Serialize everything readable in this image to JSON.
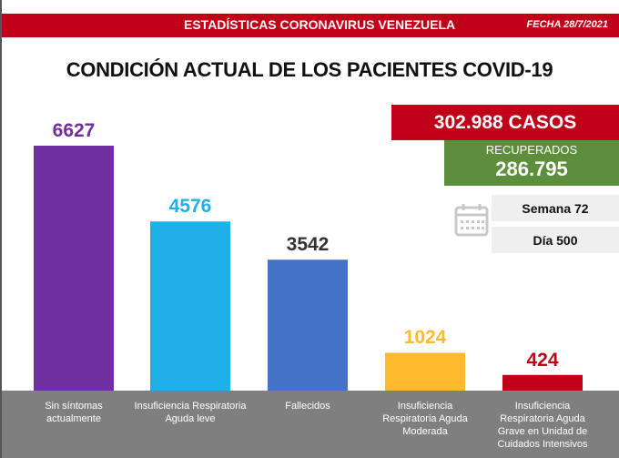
{
  "header": {
    "title": "ESTADÍSTICAS CORONAVIRUS VENEZUELA",
    "date": "FECHA 28/7/2021"
  },
  "summary": {
    "casos": "302.988 CASOS",
    "recuperados_label": "RECUPERADOS",
    "recuperados_value": "286.795",
    "semana": "Semana 72",
    "dia": "Día 500",
    "calendar_icon": "calendar-icon"
  },
  "colors": {
    "header_red": "#c00018",
    "recovered_green": "#5c8e3b",
    "band_gray": "#7f7f7f"
  },
  "chart_data": {
    "type": "bar",
    "title": "CONDICIÓN ACTUAL DE LOS PACIENTES COVID-19",
    "xlabel": "",
    "ylabel": "",
    "ylim": [
      0,
      6627
    ],
    "grid": false,
    "categories": [
      "Sin síntomas actualmente",
      "Insuficiencia Respiratoria Aguda leve",
      "Fallecidos",
      "Insuficiencia Respiratoria Aguda Moderada",
      "Insuficiencia Respiratoria Aguda Grave en Unidad de Cuidados Intensivos"
    ],
    "values": [
      6627,
      4576,
      3542,
      1024,
      424
    ],
    "value_labels": [
      "6627",
      "4576",
      "3542",
      "1024",
      "424"
    ],
    "bar_colors": [
      "#6f2f9f",
      "#1fb0ea",
      "#4472c4",
      "#fdbb2d",
      "#c00018"
    ],
    "label_colors": [
      "#6f2f9f",
      "#1fb0ea",
      "#333333",
      "#fdbb2d",
      "#c00018"
    ]
  }
}
